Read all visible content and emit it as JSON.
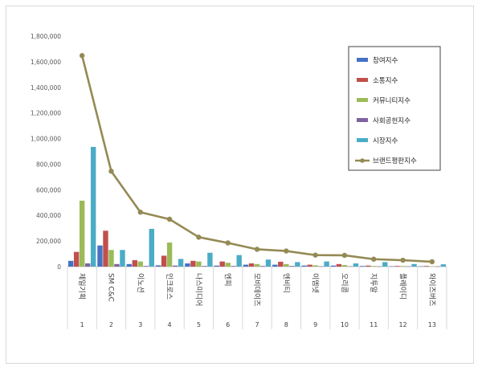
{
  "chart_data": {
    "type": "bar",
    "title": "",
    "xlabel": "",
    "ylabel": "",
    "ylim": [
      0,
      1800000
    ],
    "yticks": [
      0,
      200000,
      400000,
      600000,
      800000,
      1000000,
      1200000,
      1400000,
      1600000,
      1800000
    ],
    "ytick_labels": [
      "0",
      "200,000",
      "400,000",
      "600,000",
      "800,000",
      "1,000,000",
      "1,200,000",
      "1,400,000",
      "1,600,000",
      "1,800,000"
    ],
    "grid": false,
    "legend_position": "right",
    "categories": [
      "제일기획",
      "SM C&C",
      "이노션",
      "인크로스",
      "나스미디어",
      "엔피",
      "모비데이즈",
      "엔비티",
      "이엠넷",
      "오리콤",
      "지투알",
      "플레이디",
      "와이즈버즈"
    ],
    "category_numbers": [
      "1",
      "2",
      "3",
      "4",
      "5",
      "6",
      "7",
      "8",
      "9",
      "10",
      "11",
      "12",
      "13"
    ],
    "series": [
      {
        "name": "참여지수",
        "kind": "bar",
        "color": "#4472c4",
        "values": [
          45000,
          165000,
          20000,
          10000,
          25000,
          8000,
          15000,
          15000,
          8000,
          8000,
          5000,
          3000,
          3000
        ]
      },
      {
        "name": "소통지수",
        "kind": "bar",
        "color": "#c0504d",
        "values": [
          115000,
          280000,
          50000,
          85000,
          45000,
          40000,
          25000,
          38000,
          15000,
          20000,
          8000,
          5000,
          5000
        ]
      },
      {
        "name": "커뮤니티지수",
        "kind": "bar",
        "color": "#9bbb59",
        "values": [
          515000,
          130000,
          40000,
          188000,
          40000,
          30000,
          20000,
          20000,
          10000,
          12000,
          5000,
          5000,
          3000
        ]
      },
      {
        "name": "사회공헌지수",
        "kind": "bar",
        "color": "#8064a2",
        "values": [
          25000,
          20000,
          5000,
          8000,
          5000,
          5000,
          5000,
          5000,
          3000,
          3000,
          2000,
          2000,
          2000
        ]
      },
      {
        "name": "시장지수",
        "kind": "bar",
        "color": "#4bacc6",
        "values": [
          935000,
          130000,
          295000,
          60000,
          108000,
          90000,
          55000,
          35000,
          40000,
          25000,
          35000,
          20000,
          18000
        ]
      },
      {
        "name": "브랜드평판지수",
        "kind": "line",
        "color": "#948a54",
        "values": [
          1648000,
          745000,
          425000,
          370000,
          230000,
          185000,
          135000,
          122000,
          90000,
          88000,
          58000,
          50000,
          38000
        ]
      }
    ]
  }
}
